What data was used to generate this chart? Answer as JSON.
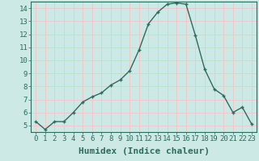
{
  "x": [
    0,
    1,
    2,
    3,
    4,
    5,
    6,
    7,
    8,
    9,
    10,
    11,
    12,
    13,
    14,
    15,
    16,
    17,
    18,
    19,
    20,
    21,
    22,
    23
  ],
  "y": [
    5.3,
    4.7,
    5.3,
    5.3,
    6.0,
    6.8,
    7.2,
    7.5,
    8.1,
    8.5,
    9.2,
    10.8,
    12.8,
    13.7,
    14.3,
    14.4,
    14.3,
    11.9,
    9.3,
    7.8,
    7.3,
    6.0,
    6.4,
    5.1
  ],
  "xlabel": "Humidex (Indice chaleur)",
  "ylim": [
    4.5,
    14.5
  ],
  "xlim": [
    -0.5,
    23.5
  ],
  "yticks": [
    5,
    6,
    7,
    8,
    9,
    10,
    11,
    12,
    13,
    14
  ],
  "xticks": [
    0,
    1,
    2,
    3,
    4,
    5,
    6,
    7,
    8,
    9,
    10,
    11,
    12,
    13,
    14,
    15,
    16,
    17,
    18,
    19,
    20,
    21,
    22,
    23
  ],
  "xtick_labels": [
    "0",
    "1",
    "2",
    "3",
    "4",
    "5",
    "6",
    "7",
    "8",
    "9",
    "10",
    "11",
    "12",
    "13",
    "14",
    "15",
    "16",
    "17",
    "18",
    "19",
    "20",
    "21",
    "22",
    "23"
  ],
  "line_color": "#2e6b5e",
  "marker": "+",
  "marker_size": 3.5,
  "marker_linewidth": 1.0,
  "bg_color": "#cce9e5",
  "grid_color": "#f0c8c8",
  "xlabel_fontsize": 8,
  "tick_fontsize": 6.5,
  "line_width": 1.0
}
